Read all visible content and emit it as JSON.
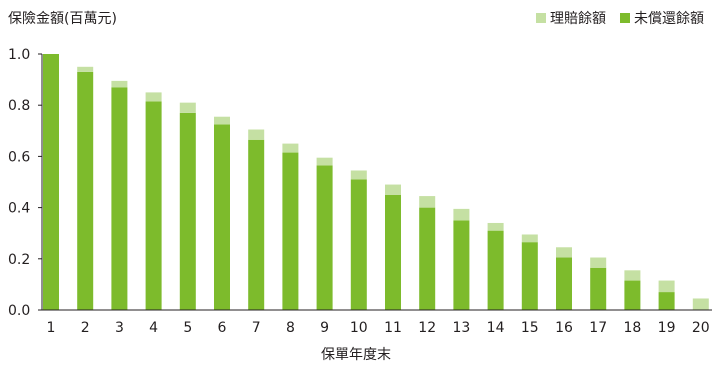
{
  "chart_data": {
    "type": "bar",
    "stacked": true,
    "ylabel": "保險金額(百萬元)",
    "xlabel": "保單年度末",
    "ylim": [
      0,
      1.0
    ],
    "yticks": [
      "0.0",
      "0.2",
      "0.4",
      "0.6",
      "0.8",
      "1.0"
    ],
    "categories": [
      "1",
      "2",
      "3",
      "4",
      "5",
      "6",
      "7",
      "8",
      "9",
      "10",
      "11",
      "12",
      "13",
      "14",
      "15",
      "16",
      "17",
      "18",
      "19",
      "20"
    ],
    "series": [
      {
        "name": "未償還餘額",
        "color": "#7dbb2c",
        "values": [
          1.0,
          0.93,
          0.87,
          0.815,
          0.77,
          0.725,
          0.665,
          0.615,
          0.565,
          0.51,
          0.45,
          0.4,
          0.35,
          0.31,
          0.265,
          0.205,
          0.165,
          0.115,
          0.07,
          0.0
        ]
      },
      {
        "name": "理賠餘額",
        "color": "#c5e0a3",
        "values": [
          0.0,
          0.02,
          0.025,
          0.035,
          0.04,
          0.03,
          0.04,
          0.035,
          0.03,
          0.035,
          0.04,
          0.045,
          0.045,
          0.03,
          0.03,
          0.04,
          0.04,
          0.04,
          0.045,
          0.045
        ]
      }
    ],
    "legend_position": "top-right",
    "grid": false
  }
}
